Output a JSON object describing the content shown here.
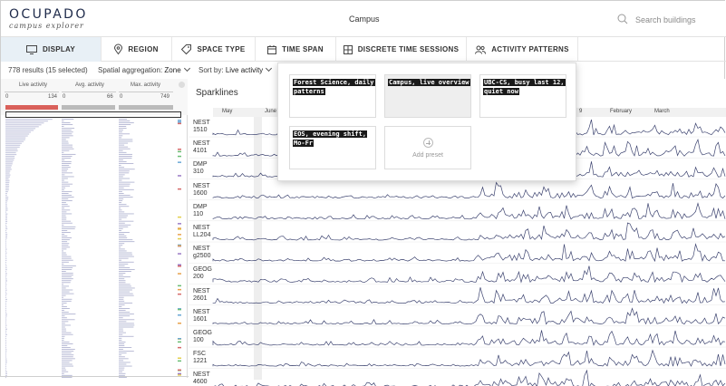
{
  "app": {
    "logo_title": "OCUPADO",
    "logo_subtitle": "campus explorer",
    "context_title": "Campus"
  },
  "search": {
    "placeholder": "Search buildings",
    "icon": "search-icon"
  },
  "tabs": [
    {
      "label": "DISPLAY",
      "icon": "monitor-icon",
      "active": true
    },
    {
      "label": "REGION",
      "icon": "location-pin-icon",
      "active": false
    },
    {
      "label": "SPACE TYPE",
      "icon": "tag-icon",
      "active": false
    },
    {
      "label": "TIME SPAN",
      "icon": "calendar-icon",
      "active": false
    },
    {
      "label": "DISCRETE TIME SESSIONS",
      "icon": "grid-icon",
      "active": false
    },
    {
      "label": "ACTIVITY PATTERNS",
      "icon": "users-icon",
      "active": false
    }
  ],
  "toolbar": {
    "results": "778 results (15 selected)",
    "agg_label": "Spatial aggregation:",
    "agg_value": "Zone",
    "sort_label": "Sort by:",
    "sort_value": "Live activity"
  },
  "left_columns": [
    {
      "name": "Live activity",
      "min": "0",
      "max": "134"
    },
    {
      "name": "Avg. activity",
      "min": "0",
      "max": "66"
    },
    {
      "name": "Max. activity",
      "min": "0",
      "max": "749"
    }
  ],
  "sparklines": {
    "title": "Sparklines",
    "months": [
      "May",
      "June",
      "9",
      "February",
      "March"
    ],
    "rows": [
      {
        "label": "NEST 1510"
      },
      {
        "label": "NEST 4101"
      },
      {
        "label": "DMP 310"
      },
      {
        "label": "NEST 1600"
      },
      {
        "label": "DMP 110"
      },
      {
        "label": "NEST LL204"
      },
      {
        "label": "NEST g2500"
      },
      {
        "label": "GEOG 200"
      },
      {
        "label": "NEST 2601"
      },
      {
        "label": "NEST 1601"
      },
      {
        "label": "GEOG 100"
      },
      {
        "label": "FSC 1221"
      },
      {
        "label": "NEST 4600"
      }
    ]
  },
  "presets": {
    "items": [
      {
        "label": "Forest Science, daily patterns",
        "active": false
      },
      {
        "label": "Campus, live overview",
        "active": true
      },
      {
        "label": "UBC-CS, busy last 12, quiet now",
        "active": false
      },
      {
        "label": "EOS, evening shift, Mo-Fr",
        "active": false
      }
    ],
    "add_label": "Add preset"
  },
  "colors": {
    "accent": "#e8f0f6",
    "sparkline": "#3d4470",
    "live_bar": "#d9605a",
    "preset_label_bg": "#1a1a1a"
  }
}
